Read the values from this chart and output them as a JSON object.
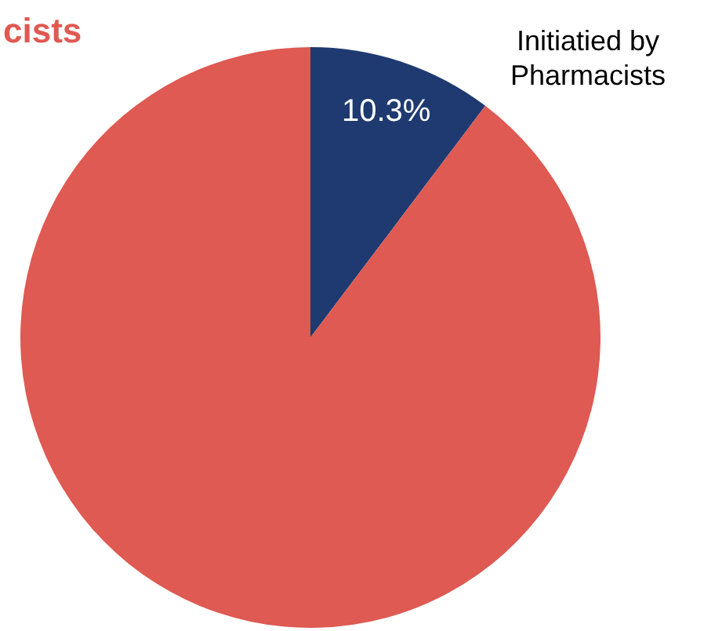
{
  "chart_data": {
    "type": "pie",
    "categories": [
      "Initiatied by\nPharmacists",
      "cists"
    ],
    "values": [
      10.3,
      89.7
    ],
    "colors": [
      "#1f3a70",
      "#de5a52"
    ],
    "value_labels": [
      "10.3%",
      null
    ]
  }
}
